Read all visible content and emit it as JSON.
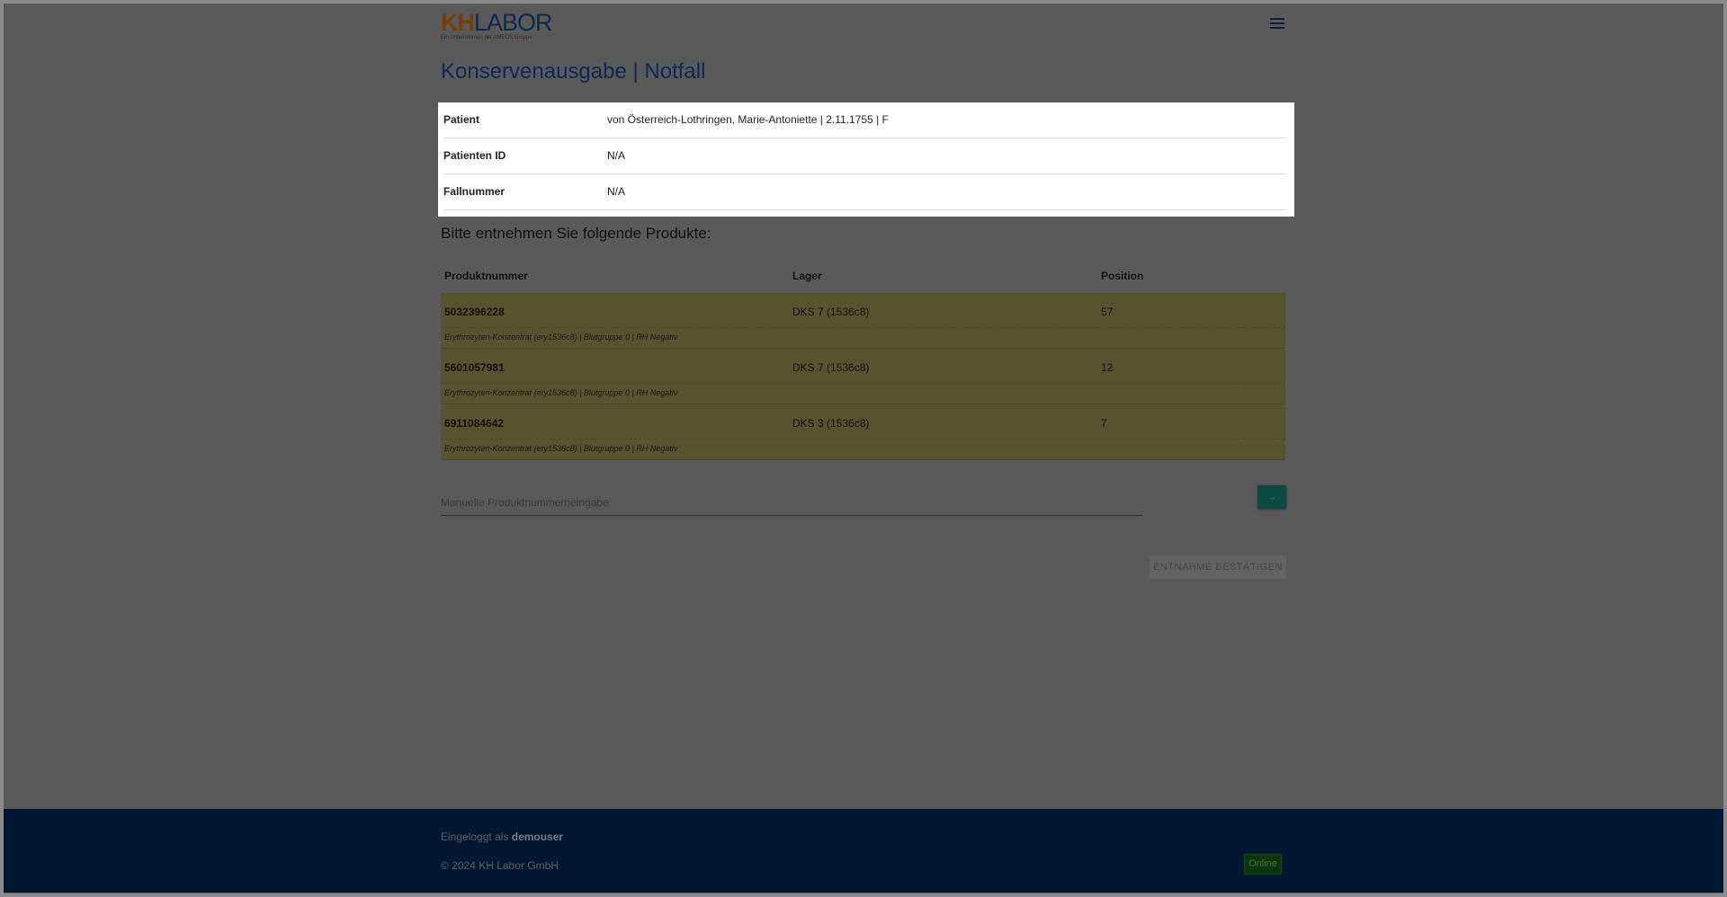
{
  "header": {
    "logo_kh": "KH",
    "logo_labor": "LABOR",
    "logo_tagline": "Ein Unternehmen der AMEOS Gruppe",
    "menu_icon": "hamburger-icon"
  },
  "page_title": "Konservenausgabe | Notfall",
  "patient_info": [
    {
      "label": "Patient",
      "value": "von Österreich-Lothringen, Marie-Antoniette | 2.11.1755 | F"
    },
    {
      "label": "Patienten ID",
      "value": "N/A"
    },
    {
      "label": "Fallnummer",
      "value": "N/A"
    }
  ],
  "products_heading": "Bitte entnehmen Sie folgende Produkte:",
  "table": {
    "columns": [
      "Produktnummer",
      "Lager",
      "Position"
    ],
    "rows": [
      {
        "number": "5032396228",
        "lager": "DKS 7 (1536c8)",
        "position": "57",
        "description": "Erythrozyten-Konzentrat (ery1536c8) | Blutgruppe 0 | RH Negativ"
      },
      {
        "number": "5601057981",
        "lager": "DKS 7 (1536c8)",
        "position": "12",
        "description": "Erythrozyten-Konzentrat (ery1536c8) | Blutgruppe 0 | RH Negativ"
      },
      {
        "number": "6911084642",
        "lager": "DKS 3 (1536c8)",
        "position": "7",
        "description": "Erythrozyten-Konzentrat (ery1536c8) | Blutgruppe 0 | RH Negativ"
      }
    ],
    "row_color": "#57532e"
  },
  "manual_input": {
    "placeholder": "Manuelle Produktnummerneingabe",
    "value": "",
    "submit_label": "→"
  },
  "confirm_label": "ENTNAHME BESTÄTIGEN",
  "footer": {
    "logged_in_prefix": "Eingeloggt als",
    "username": "demouser",
    "copyright": "© 2024 KH Labor GmbH",
    "status": "Online"
  }
}
